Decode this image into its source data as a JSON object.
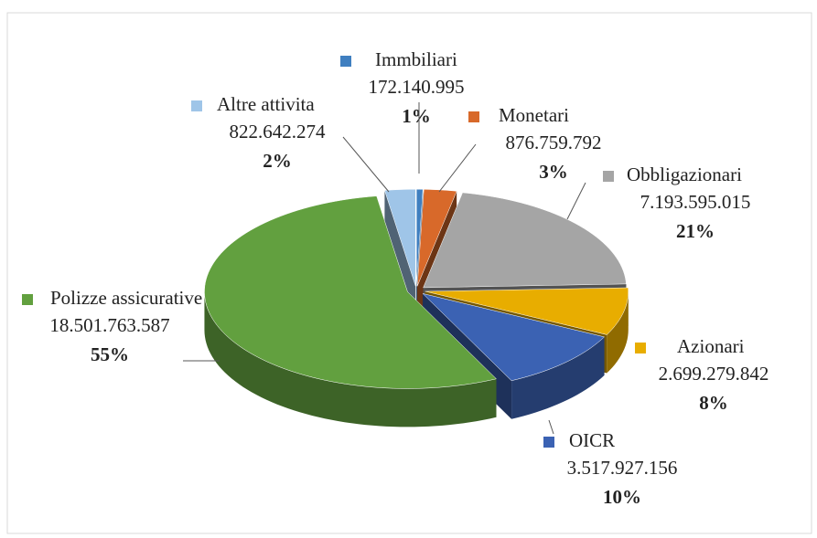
{
  "chart_data": {
    "type": "pie",
    "categories": [
      "Immbiliari",
      "Monetari",
      "Obbligazionari",
      "Azionari",
      "OICR",
      "Polizze assicurative",
      "Altre attivita"
    ],
    "values": [
      172140995,
      876759792,
      7193595015,
      2699279842,
      3517927156,
      18501763587,
      822642274
    ],
    "value_labels": [
      "172.140.995",
      "876.759.792",
      "7.193.595.015",
      "2.699.279.842",
      "3.517.927.156",
      "18.501.763.587",
      "822.642.274"
    ],
    "percent_labels": [
      "1%",
      "3%",
      "21%",
      "8%",
      "10%",
      "55%",
      "2%"
    ],
    "colors": [
      "#3f7fc0",
      "#d8692a",
      "#a5a5a5",
      "#e8ad00",
      "#3b62b3",
      "#62a03f",
      "#9fc5e8"
    ]
  }
}
